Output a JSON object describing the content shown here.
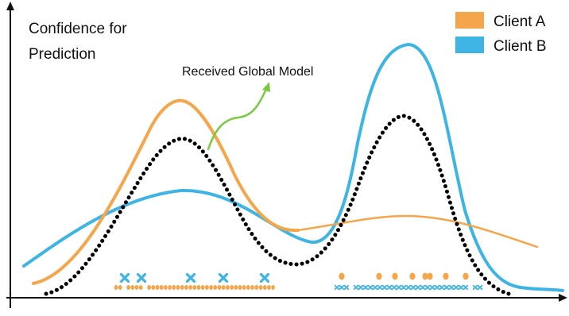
{
  "figure": {
    "y_label_lines": [
      "Confidence for",
      "Prediction"
    ],
    "annotation": "Received Global Model",
    "legend": [
      {
        "label": "Client A",
        "color": "#F5A54A"
      },
      {
        "label": "Client B",
        "color": "#3EB4E5"
      }
    ],
    "colors": {
      "client_a": "#F5A54A",
      "client_b": "#3EB4E5",
      "global_model": "#000000",
      "arrow": "#7AC943",
      "axis": "#111111"
    },
    "icons": {
      "client_a_sample": "orange-dot",
      "client_b_sample": "blue-cross"
    }
  }
}
